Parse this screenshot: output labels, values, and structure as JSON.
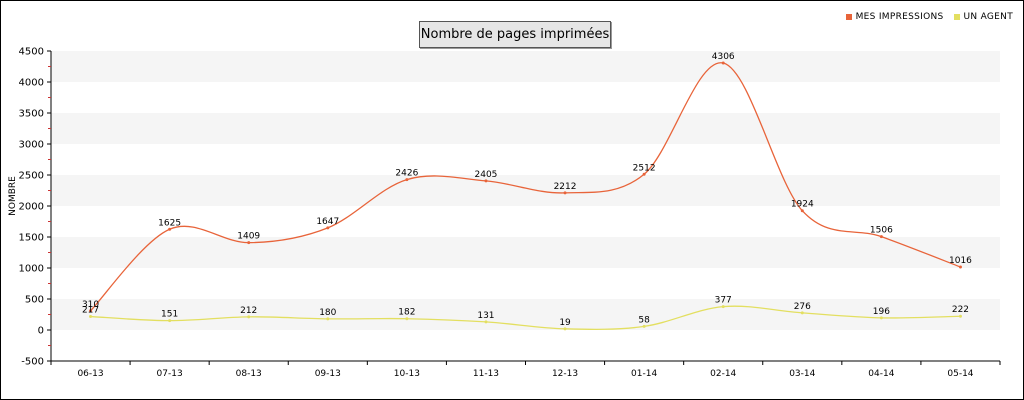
{
  "chart_data": {
    "type": "line",
    "title": "Nombre de pages imprimées",
    "xlabel": "",
    "ylabel": "NOMBRE",
    "categories": [
      "06-13",
      "07-13",
      "08-13",
      "09-13",
      "10-13",
      "11-13",
      "12-13",
      "01-14",
      "02-14",
      "03-14",
      "04-14",
      "05-14"
    ],
    "ylim": [
      -500,
      4500
    ],
    "yticks": [
      -500,
      0,
      500,
      1000,
      1500,
      2000,
      2500,
      3000,
      3500,
      4000,
      4500
    ],
    "series": [
      {
        "name": "MES IMPRESSIONS",
        "color": "#e8643a",
        "values": [
          310,
          1625,
          1409,
          1647,
          2426,
          2405,
          2212,
          2512,
          4306,
          1924,
          1506,
          1016
        ]
      },
      {
        "name": "UN AGENT",
        "color": "#e3df60",
        "values": [
          217,
          151,
          212,
          180,
          182,
          131,
          19,
          58,
          377,
          276,
          196,
          222
        ]
      }
    ],
    "grid": "alternating-horizontal-bands",
    "legend": "top-right"
  }
}
